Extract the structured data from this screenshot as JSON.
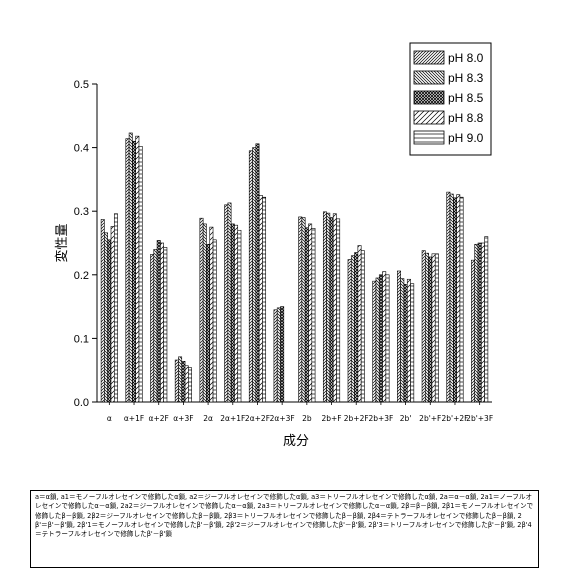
{
  "chart_data": {
    "type": "bar",
    "xlabel": "成分",
    "ylabel": "変性量",
    "ylim": [
      0,
      0.5
    ],
    "yticks": [
      "0.0",
      "0.1",
      "0.2",
      "0.3",
      "0.4",
      "0.5"
    ],
    "grid": false,
    "legend_position": "top-right",
    "categories": [
      "α",
      "α+1F",
      "α+2F",
      "α+3F",
      "2α",
      "2α+1F",
      "2α+2F",
      "2α+3F",
      "2b",
      "2b+F",
      "2b+2F",
      "2b+3F",
      "2b'",
      "2b'+F",
      "2b'+2F",
      "2b'+3F"
    ],
    "series": [
      {
        "name": "pH 8.0",
        "values": [
          0.287,
          0.414,
          0.232,
          0.066,
          0.289,
          0.31,
          0.395,
          0.145,
          0.291,
          0.299,
          0.224,
          0.19,
          0.206,
          0.238,
          0.33,
          0.223
        ]
      },
      {
        "name": "pH 8.3",
        "values": [
          0.266,
          0.423,
          0.24,
          0.071,
          0.28,
          0.313,
          0.4,
          0.148,
          0.29,
          0.297,
          0.23,
          0.195,
          0.194,
          0.234,
          0.327,
          0.248
        ]
      },
      {
        "name": "pH 8.5",
        "values": [
          0.255,
          0.41,
          0.254,
          0.064,
          0.248,
          0.28,
          0.406,
          0.15,
          0.274,
          0.29,
          0.235,
          0.2,
          0.185,
          0.228,
          0.321,
          0.25
        ]
      },
      {
        "name": "pH 8.8",
        "values": [
          0.276,
          0.418,
          0.25,
          0.057,
          0.275,
          0.278,
          0.325,
          0.0,
          0.28,
          0.296,
          0.246,
          0.205,
          0.193,
          0.233,
          0.326,
          0.25
        ]
      },
      {
        "name": "pH 9.0",
        "values": [
          0.296,
          0.402,
          0.243,
          0.054,
          0.255,
          0.27,
          0.322,
          0.0,
          0.273,
          0.288,
          0.238,
          0.2,
          0.186,
          0.233,
          0.322,
          0.26
        ]
      }
    ]
  },
  "caption": "a＝α鎖, a1＝モノーフルオレセインで修飾したα鎖, a2＝ジーフルオレセインで修飾したα鎖, a3＝トリーフルオレセインで修飾したα鎖, 2a＝α－α鎖, 2a1＝ノーフルオレセインで修飾したα－α鎖, 2a2＝ジーフルオレセインで修飾したα－α鎖, 2a3＝トリーフルオレセインで修飾したα－α鎖, 2β＝β－β鎖, 2β1＝モノーフルオレセインで修飾したβ－β鎖, 2β2＝ジーフルオレセインで修飾したβ－β鎖, 2β3＝トリーフルオレセインで修飾したβ－β鎖, 2β4＝テトラーフルオレセインで修飾したβ－β鎖, 2β'＝β'－β'鎖, 2β'1＝モノーフルオレセインで修飾したβ'－β'鎖, 2β'2＝ジーフルオレセインで修飾したβ'－β'鎖, 2β'3＝トリーフルオレセインで修飾したβ'－β'鎖, 2β'4＝テトラーフルオレセインで修飾したβ'－β'鎖"
}
